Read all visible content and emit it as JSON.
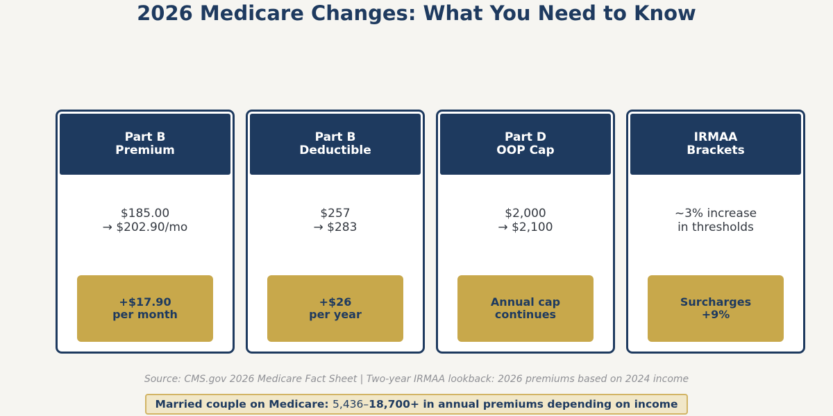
{
  "title": "2026 Medicare Changes: What You Need to Know",
  "colors": {
    "navy": "#1e3a5f",
    "gold": "#c8a84b",
    "background": "#f6f5f1",
    "note_fill": "#f1e7c8"
  },
  "cards": [
    {
      "header": [
        "Part B",
        "Premium"
      ],
      "body": [
        "$185.00",
        "→ $202.90/mo"
      ],
      "badge": [
        "+$17.90",
        "per month"
      ]
    },
    {
      "header": [
        "Part B",
        "Deductible"
      ],
      "body": [
        "$257",
        "→ $283"
      ],
      "badge": [
        "+$26",
        "per year"
      ]
    },
    {
      "header": [
        "Part D",
        "OOP Cap"
      ],
      "body": [
        "$2,000",
        "→ $2,100"
      ],
      "badge": [
        "Annual cap",
        "continues"
      ]
    },
    {
      "header": [
        "IRMAA",
        "Brackets"
      ],
      "body": [
        "~3% increase",
        "in thresholds"
      ],
      "badge": [
        "Surcharges",
        "+9%"
      ]
    }
  ],
  "source": "Source: CMS.gov 2026 Medicare Fact Sheet  |  Two-year IRMAA lookback: 2026 premiums based on 2024 income",
  "note": {
    "lead": "Married couple on Medicare: ",
    "mid": "5,436–",
    "tail": "18,700+ in annual premiums depending on income"
  }
}
